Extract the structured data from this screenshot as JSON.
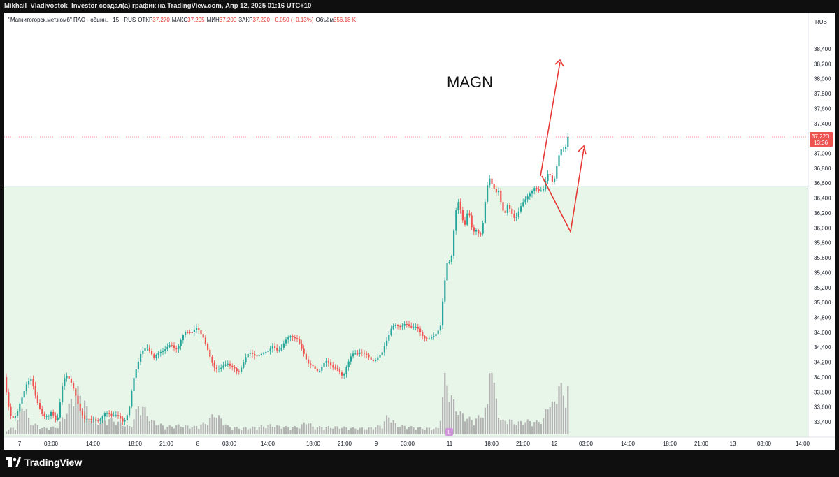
{
  "caption": "Mikhail_Vladivostok_Investor создал(а) график на TradingView.com, Апр 12, 2025 01:16 UTC+10",
  "legend": {
    "symbol": "\"Магнитогорск.мет.комб\" ПАО - обыкн. · 15 · RUS",
    "open_label": "ОТКР",
    "open": "37,270",
    "high_label": "МАКС",
    "high": "37,295",
    "low_label": "МИН",
    "low": "37,200",
    "close_label": "ЗАКР",
    "close": "37,220",
    "change": "−0,050 (−0,13%)",
    "volume_label": "Объём",
    "volume": "356,18 K"
  },
  "annotation": "MAGN",
  "currency": "RUB",
  "price_tag": {
    "price": "37,220",
    "time": "13:36"
  },
  "events_marker": "L",
  "brand": "TradingView",
  "colors": {
    "up": "#26a69a",
    "down": "#ef5350",
    "volume": "#b2b2b2",
    "support_zone": "#e8f5e9",
    "arrow": "#e53935"
  },
  "chart_data": {
    "type": "candlestick",
    "ylim": [
      33300,
      38600
    ],
    "y_ticks": [
      "38,400",
      "38,200",
      "38,000",
      "37,800",
      "37,600",
      "37,400",
      "37,200",
      "37,000",
      "36,800",
      "36,600",
      "36,400",
      "36,200",
      "36,000",
      "35,800",
      "35,600",
      "35,400",
      "35,200",
      "35,000",
      "34,800",
      "34,600",
      "34,400",
      "34,200",
      "34,000",
      "33,800",
      "33,600",
      "33,400"
    ],
    "x_ticks": [
      "7",
      "03:00",
      "14:00",
      "18:00",
      "21:00",
      "8",
      "03:00",
      "14:00",
      "18:00",
      "21:00",
      "9",
      "03:00",
      "11",
      "18:00",
      "21:00",
      "12",
      "03:00",
      "14:00",
      "18:00",
      "21:00",
      "13",
      "03:00",
      "14:00"
    ],
    "support_level": 36560,
    "last_price": 37220,
    "price_path": [
      [
        0,
        34000
      ],
      [
        3,
        33850
      ],
      [
        6,
        33650
      ],
      [
        9,
        33500
      ],
      [
        12,
        33430
      ],
      [
        15,
        33450
      ],
      [
        18,
        33500
      ],
      [
        21,
        33600
      ],
      [
        24,
        33700
      ],
      [
        27,
        33750
      ],
      [
        30,
        33820
      ],
      [
        33,
        33900
      ],
      [
        36,
        33950
      ],
      [
        40,
        34000
      ],
      [
        44,
        33800
      ],
      [
        48,
        33650
      ],
      [
        52,
        33550
      ],
      [
        56,
        33480
      ],
      [
        60,
        33500
      ],
      [
        64,
        33480
      ],
      [
        68,
        33520
      ],
      [
        72,
        33450
      ],
      [
        76,
        33400
      ],
      [
        80,
        33650
      ],
      [
        84,
        33900
      ],
      [
        88,
        34000
      ],
      [
        92,
        34000
      ],
      [
        96,
        33950
      ],
      [
        100,
        33850
      ],
      [
        104,
        33700
      ],
      [
        108,
        33550
      ],
      [
        112,
        33500
      ],
      [
        116,
        33450
      ],
      [
        120,
        33450
      ],
      [
        125,
        33400
      ],
      [
        130,
        33430
      ],
      [
        135,
        33430
      ],
      [
        140,
        33450
      ],
      [
        145,
        33500
      ],
      [
        150,
        33520
      ],
      [
        155,
        33500
      ],
      [
        160,
        33480
      ],
      [
        165,
        33450
      ],
      [
        170,
        33420
      ],
      [
        175,
        33450
      ],
      [
        180,
        33600
      ],
      [
        185,
        33950
      ],
      [
        190,
        34150
      ],
      [
        195,
        34300
      ],
      [
        200,
        34350
      ],
      [
        205,
        34400
      ],
      [
        210,
        34350
      ],
      [
        215,
        34250
      ],
      [
        220,
        34300
      ],
      [
        225,
        34350
      ],
      [
        230,
        34380
      ],
      [
        235,
        34400
      ],
      [
        240,
        34420
      ],
      [
        245,
        34380
      ],
      [
        250,
        34420
      ],
      [
        255,
        34520
      ],
      [
        260,
        34600
      ],
      [
        265,
        34620
      ],
      [
        270,
        34600
      ],
      [
        275,
        34650
      ],
      [
        280,
        34620
      ],
      [
        285,
        34550
      ],
      [
        290,
        34400
      ],
      [
        295,
        34250
      ],
      [
        300,
        34150
      ],
      [
        305,
        34120
      ],
      [
        310,
        34100
      ],
      [
        315,
        34150
      ],
      [
        320,
        34200
      ],
      [
        325,
        34150
      ],
      [
        330,
        34100
      ],
      [
        335,
        34050
      ],
      [
        340,
        34150
      ],
      [
        345,
        34250
      ],
      [
        350,
        34300
      ],
      [
        355,
        34320
      ],
      [
        360,
        34300
      ],
      [
        365,
        34280
      ],
      [
        370,
        34300
      ],
      [
        375,
        34350
      ],
      [
        380,
        34380
      ],
      [
        385,
        34400
      ],
      [
        390,
        34350
      ],
      [
        395,
        34380
      ],
      [
        400,
        34450
      ],
      [
        405,
        34500
      ],
      [
        410,
        34550
      ],
      [
        415,
        34550
      ],
      [
        420,
        34500
      ],
      [
        425,
        34380
      ],
      [
        430,
        34300
      ],
      [
        435,
        34200
      ],
      [
        440,
        34150
      ],
      [
        445,
        34100
      ],
      [
        450,
        34080
      ],
      [
        455,
        34150
      ],
      [
        460,
        34200
      ],
      [
        465,
        34180
      ],
      [
        470,
        34150
      ],
      [
        475,
        34120
      ],
      [
        480,
        34050
      ],
      [
        485,
        34000
      ],
      [
        490,
        34150
      ],
      [
        495,
        34250
      ],
      [
        500,
        34300
      ],
      [
        505,
        34320
      ],
      [
        510,
        34350
      ],
      [
        515,
        34300
      ],
      [
        520,
        34280
      ],
      [
        525,
        34250
      ],
      [
        530,
        34220
      ],
      [
        535,
        34250
      ],
      [
        540,
        34300
      ],
      [
        545,
        34450
      ],
      [
        550,
        34550
      ],
      [
        555,
        34650
      ],
      [
        560,
        34700
      ],
      [
        565,
        34700
      ],
      [
        570,
        34680
      ],
      [
        575,
        34700
      ],
      [
        580,
        34690
      ],
      [
        585,
        34680
      ],
      [
        590,
        34660
      ],
      [
        595,
        34600
      ],
      [
        600,
        34550
      ],
      [
        605,
        34520
      ],
      [
        610,
        34500
      ],
      [
        615,
        34550
      ],
      [
        620,
        34620
      ],
      [
        625,
        34700
      ],
      [
        627,
        34950
      ],
      [
        630,
        35200
      ],
      [
        633,
        35500
      ],
      [
        636,
        35600
      ],
      [
        639,
        35500
      ],
      [
        642,
        35800
      ],
      [
        645,
        36100
      ],
      [
        648,
        36300
      ],
      [
        651,
        36350
      ],
      [
        654,
        36200
      ],
      [
        657,
        36100
      ],
      [
        660,
        36050
      ],
      [
        663,
        36200
      ],
      [
        666,
        36150
      ],
      [
        669,
        36000
      ],
      [
        672,
        35950
      ],
      [
        675,
        36000
      ],
      [
        678,
        35950
      ],
      [
        681,
        35900
      ],
      [
        684,
        35950
      ],
      [
        687,
        36200
      ],
      [
        690,
        36500
      ],
      [
        693,
        36650
      ],
      [
        696,
        36700
      ],
      [
        699,
        36550
      ],
      [
        702,
        36500
      ],
      [
        705,
        36450
      ],
      [
        708,
        36500
      ],
      [
        711,
        36350
      ],
      [
        714,
        36250
      ],
      [
        717,
        36200
      ],
      [
        720,
        36300
      ],
      [
        723,
        36250
      ],
      [
        726,
        36200
      ],
      [
        729,
        36150
      ],
      [
        732,
        36150
      ],
      [
        735,
        36200
      ],
      [
        738,
        36250
      ],
      [
        741,
        36300
      ],
      [
        744,
        36350
      ],
      [
        747,
        36400
      ],
      [
        750,
        36450
      ],
      [
        753,
        36480
      ],
      [
        756,
        36500
      ],
      [
        759,
        36520
      ],
      [
        762,
        36510
      ],
      [
        765,
        36500
      ],
      [
        768,
        36520
      ],
      [
        771,
        36520
      ],
      [
        774,
        36600
      ],
      [
        777,
        36700
      ],
      [
        780,
        36720
      ],
      [
        783,
        36650
      ],
      [
        786,
        36600
      ],
      [
        789,
        36750
      ],
      [
        792,
        36900
      ],
      [
        795,
        37000
      ],
      [
        798,
        37050
      ],
      [
        801,
        37050
      ],
      [
        804,
        37100
      ],
      [
        807,
        37250
      ],
      [
        810,
        37220
      ]
    ],
    "volume_path": [
      [
        0,
        6
      ],
      [
        15,
        12
      ],
      [
        27,
        55
      ],
      [
        35,
        20
      ],
      [
        55,
        10
      ],
      [
        75,
        12
      ],
      [
        92,
        45
      ],
      [
        100,
        75
      ],
      [
        112,
        60
      ],
      [
        120,
        30
      ],
      [
        135,
        20
      ],
      [
        150,
        25
      ],
      [
        165,
        18
      ],
      [
        180,
        12
      ],
      [
        192,
        50
      ],
      [
        200,
        40
      ],
      [
        210,
        22
      ],
      [
        230,
        12
      ],
      [
        250,
        15
      ],
      [
        270,
        12
      ],
      [
        290,
        20
      ],
      [
        300,
        35
      ],
      [
        320,
        12
      ],
      [
        340,
        10
      ],
      [
        360,
        12
      ],
      [
        380,
        15
      ],
      [
        400,
        12
      ],
      [
        420,
        12
      ],
      [
        433,
        22
      ],
      [
        440,
        12
      ],
      [
        460,
        12
      ],
      [
        480,
        12
      ],
      [
        500,
        10
      ],
      [
        520,
        10
      ],
      [
        540,
        15
      ],
      [
        548,
        32
      ],
      [
        560,
        15
      ],
      [
        580,
        12
      ],
      [
        600,
        10
      ],
      [
        620,
        10
      ],
      [
        630,
        95
      ],
      [
        640,
        55
      ],
      [
        650,
        35
      ],
      [
        660,
        28
      ],
      [
        670,
        22
      ],
      [
        680,
        30
      ],
      [
        690,
        45
      ],
      [
        694,
        145
      ],
      [
        700,
        70
      ],
      [
        710,
        20
      ],
      [
        720,
        25
      ],
      [
        730,
        18
      ],
      [
        745,
        22
      ],
      [
        760,
        20
      ],
      [
        770,
        25
      ],
      [
        778,
        55
      ],
      [
        785,
        45
      ],
      [
        792,
        85
      ],
      [
        800,
        60
      ],
      [
        806,
        80
      ],
      [
        810,
        12
      ]
    ]
  }
}
